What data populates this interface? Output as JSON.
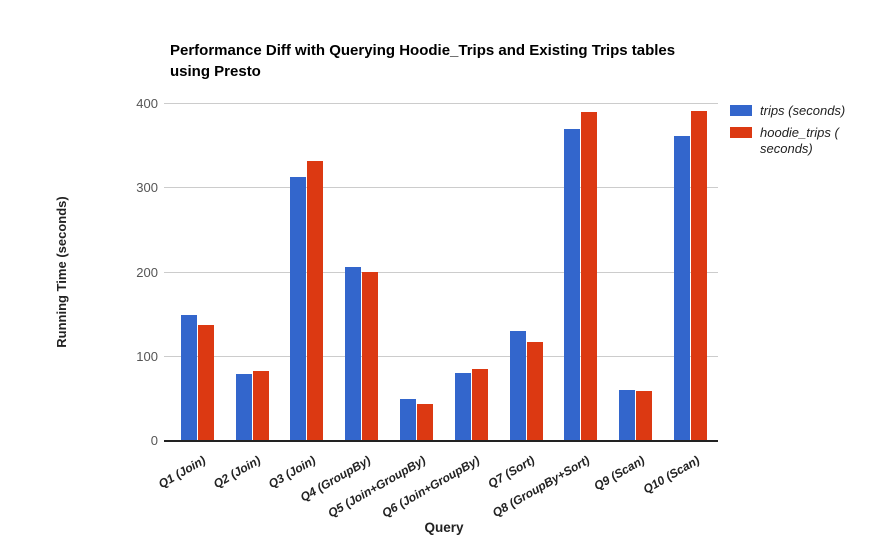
{
  "chart_data": {
    "type": "bar",
    "title": "Performance Diff with Querying Hoodie_Trips and Existing Trips tables using Presto",
    "title_lines": [
      "Performance Diff with Querying Hoodie_Trips and Existing Trips tables",
      "using Presto"
    ],
    "xlabel": "Query",
    "ylabel": "Running Time (seconds)",
    "categories": [
      "Q1 (Join)",
      "Q2 (Join)",
      "Q3 (Join)",
      "Q4 (GroupBy)",
      "Q5 (Join+GroupBy)",
      "Q6 (Join+GroupBy)",
      "Q7 (Sort)",
      "Q8 (GroupBy+Sort)",
      "Q9 (Scan)",
      "Q10 (Scan)"
    ],
    "series": [
      {
        "name": "trips (seconds)",
        "color": "#3366cc",
        "values": [
          150,
          80,
          313,
          207,
          50,
          81,
          131,
          370,
          60,
          362
        ]
      },
      {
        "name": "hoodie_trips ( seconds)",
        "color": "#dc3912",
        "values": [
          138,
          83,
          332,
          201,
          44,
          85,
          117,
          390,
          59,
          392
        ]
      }
    ],
    "ylim": [
      0,
      400
    ],
    "yticks": [
      0,
      100,
      200,
      300,
      400
    ],
    "grid": true,
    "legend_position": "right",
    "colors": {
      "background": "#ffffff",
      "gridline": "#cccccc",
      "baseline": "#222222",
      "tick_label": "#555555",
      "category_label": "#222222",
      "title_text": "#000000",
      "series_blue": "#3366cc",
      "series_red": "#dc3912"
    }
  }
}
